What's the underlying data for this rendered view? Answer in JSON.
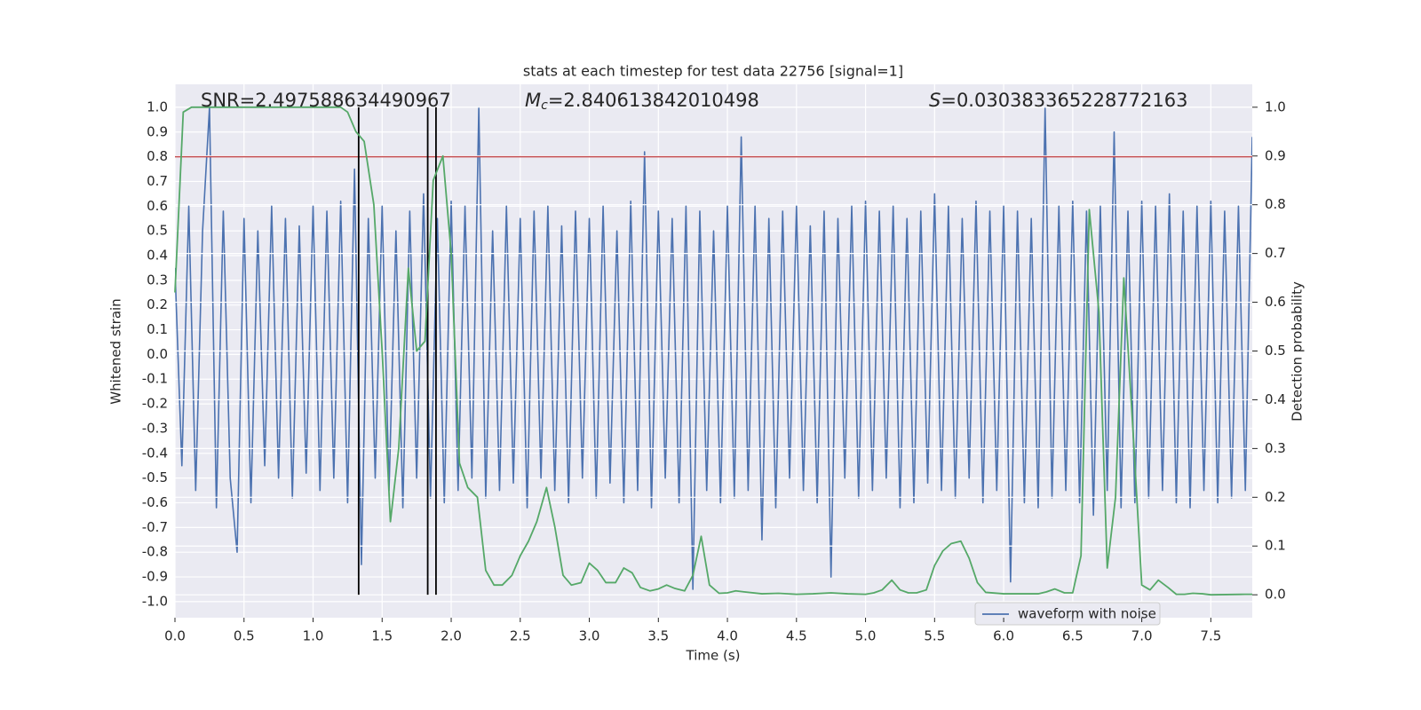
{
  "chart_data": {
    "type": "line",
    "title": "stats at each timestep for test data 22756 [signal=1]",
    "xlabel": "Time (s)",
    "ylabel": "Whitened strain",
    "y2label": "Detection probability",
    "annotations": [
      {
        "text": "SNR=2.497588634490967"
      },
      {
        "symbol": "M",
        "subscript": "c",
        "text": "=2.840613842010498"
      },
      {
        "symbol": "S",
        "text": "=0.030383365228772163"
      }
    ],
    "xlim": [
      0,
      7.8
    ],
    "ylim": [
      -1.065,
      1.093
    ],
    "y2lim": [
      -0.047,
      1.047
    ],
    "grid": true,
    "background": "#eaeaf2",
    "xticks": [
      {
        "value": 0,
        "label": "0.0"
      },
      {
        "value": 0.5,
        "label": "0.5"
      },
      {
        "value": 1,
        "label": "1.0"
      },
      {
        "value": 1.5,
        "label": "1.5"
      },
      {
        "value": 2,
        "label": "2.0"
      },
      {
        "value": 2.5,
        "label": "2.5"
      },
      {
        "value": 3,
        "label": "3.0"
      },
      {
        "value": 3.5,
        "label": "3.5"
      },
      {
        "value": 4,
        "label": "4.0"
      },
      {
        "value": 4.5,
        "label": "4.5"
      },
      {
        "value": 5,
        "label": "5.0"
      },
      {
        "value": 5.5,
        "label": "5.5"
      },
      {
        "value": 6,
        "label": "6.0"
      },
      {
        "value": 6.5,
        "label": "6.5"
      },
      {
        "value": 7,
        "label": "7.0"
      },
      {
        "value": 7.5,
        "label": "7.5"
      }
    ],
    "yticks": [
      {
        "value": 1,
        "label": "1.0"
      },
      {
        "value": 0.9,
        "label": "0.9"
      },
      {
        "value": 0.8,
        "label": "0.8"
      },
      {
        "value": 0.7,
        "label": "0.7"
      },
      {
        "value": 0.6,
        "label": "0.6"
      },
      {
        "value": 0.5,
        "label": "0.5"
      },
      {
        "value": 0.4,
        "label": "0.4"
      },
      {
        "value": 0.3,
        "label": "0.3"
      },
      {
        "value": 0.2,
        "label": "0.2"
      },
      {
        "value": 0.1,
        "label": "0.1"
      },
      {
        "value": 0,
        "label": "0.0"
      },
      {
        "value": -0.1,
        "label": "-0.1"
      },
      {
        "value": -0.2,
        "label": "-0.2"
      },
      {
        "value": -0.3,
        "label": "-0.3"
      },
      {
        "value": -0.4,
        "label": "-0.4"
      },
      {
        "value": -0.5,
        "label": "-0.5"
      },
      {
        "value": -0.6,
        "label": "-0.6"
      },
      {
        "value": -0.7,
        "label": "-0.7"
      },
      {
        "value": -0.8,
        "label": "-0.8"
      },
      {
        "value": -0.9,
        "label": "-0.9"
      },
      {
        "value": -1,
        "label": "-1.0"
      }
    ],
    "y2ticks": [
      {
        "value": 0,
        "label": "0.0"
      },
      {
        "value": 0.1,
        "label": "0.1"
      },
      {
        "value": 0.2,
        "label": "0.2"
      },
      {
        "value": 0.3,
        "label": "0.3"
      },
      {
        "value": 0.4,
        "label": "0.4"
      },
      {
        "value": 0.5,
        "label": "0.5"
      },
      {
        "value": 0.6,
        "label": "0.6"
      },
      {
        "value": 0.7,
        "label": "0.7"
      },
      {
        "value": 0.8,
        "label": "0.8"
      },
      {
        "value": 0.9,
        "label": "0.9"
      },
      {
        "value": 1,
        "label": "1.0"
      }
    ],
    "series": [
      {
        "name": "waveform with noise",
        "color": "#4c72b0",
        "axis": "y",
        "x": [
          0,
          0.05,
          0.1,
          0.15,
          0.2,
          0.25,
          0.3,
          0.35,
          0.4,
          0.45,
          0.5,
          0.55,
          0.6,
          0.65,
          0.7,
          0.75,
          0.8,
          0.85,
          0.9,
          0.95,
          1,
          1.05,
          1.1,
          1.15,
          1.2,
          1.25,
          1.3,
          1.35,
          1.4,
          1.45,
          1.5,
          1.55,
          1.6,
          1.65,
          1.7,
          1.75,
          1.8,
          1.85,
          1.9,
          1.95,
          2,
          2.05,
          2.1,
          2.15,
          2.2,
          2.25,
          2.3,
          2.35,
          2.4,
          2.45,
          2.5,
          2.55,
          2.6,
          2.65,
          2.7,
          2.75,
          2.8,
          2.85,
          2.9,
          2.95,
          3,
          3.05,
          3.1,
          3.15,
          3.2,
          3.25,
          3.3,
          3.35,
          3.4,
          3.45,
          3.5,
          3.55,
          3.6,
          3.65,
          3.7,
          3.75,
          3.8,
          3.85,
          3.9,
          3.95,
          4,
          4.05,
          4.1,
          4.15,
          4.2,
          4.25,
          4.3,
          4.35,
          4.4,
          4.45,
          4.5,
          4.55,
          4.6,
          4.65,
          4.7,
          4.75,
          4.8,
          4.85,
          4.9,
          4.95,
          5,
          5.05,
          5.1,
          5.15,
          5.2,
          5.25,
          5.3,
          5.35,
          5.4,
          5.45,
          5.5,
          5.55,
          5.6,
          5.65,
          5.7,
          5.75,
          5.8,
          5.85,
          5.9,
          5.95,
          6,
          6.05,
          6.1,
          6.15,
          6.2,
          6.25,
          6.3,
          6.35,
          6.4,
          6.45,
          6.5,
          6.55,
          6.6,
          6.65,
          6.7,
          6.75,
          6.8,
          6.85,
          6.9,
          6.95,
          7,
          7.05,
          7.1,
          7.15,
          7.2,
          7.25,
          7.3,
          7.35,
          7.4,
          7.45,
          7.5,
          7.55,
          7.6,
          7.65,
          7.7,
          7.75,
          7.8
        ],
        "values": [
          0.35,
          -0.45,
          0.6,
          -0.55,
          0.5,
          1.0,
          -0.62,
          0.58,
          -0.5,
          -0.8,
          0.55,
          -0.6,
          0.5,
          -0.45,
          0.6,
          -0.5,
          0.55,
          -0.58,
          0.52,
          -0.48,
          0.6,
          -0.55,
          0.58,
          -0.5,
          0.62,
          -0.6,
          0.75,
          -0.85,
          0.55,
          -0.5,
          0.6,
          -0.55,
          0.5,
          -0.62,
          0.58,
          -0.5,
          0.65,
          -0.58,
          0.55,
          -0.6,
          0.62,
          -0.55,
          0.6,
          -0.5,
          1.0,
          -0.58,
          0.5,
          -0.55,
          0.6,
          -0.52,
          0.55,
          -0.62,
          0.58,
          -0.5,
          0.6,
          -0.55,
          0.52,
          -0.6,
          0.58,
          -0.5,
          0.55,
          -0.58,
          0.6,
          -0.52,
          0.5,
          -0.6,
          0.62,
          -0.55,
          0.82,
          -0.62,
          0.58,
          -0.5,
          0.55,
          -0.6,
          0.6,
          -0.95,
          0.58,
          -0.55,
          0.5,
          -0.6,
          0.6,
          -0.58,
          0.88,
          -0.55,
          0.6,
          -0.75,
          0.55,
          -0.62,
          0.58,
          -0.5,
          0.6,
          -0.55,
          0.52,
          -0.6,
          0.58,
          -0.9,
          0.55,
          -0.5,
          0.6,
          -0.58,
          0.62,
          -0.55,
          0.58,
          -0.5,
          0.6,
          -0.62,
          0.55,
          -0.6,
          0.58,
          -0.52,
          0.65,
          -0.55,
          0.6,
          -0.58,
          0.55,
          -0.5,
          0.62,
          -0.6,
          0.58,
          -0.55,
          0.6,
          -0.92,
          0.58,
          -0.6,
          0.55,
          -0.62,
          1.0,
          -0.58,
          0.6,
          -0.55,
          0.62,
          -0.6,
          0.58,
          -0.65,
          0.6,
          -0.55,
          0.9,
          -0.62,
          0.58,
          -0.6,
          0.62,
          -0.58,
          0.6,
          -0.55,
          0.65,
          -0.6,
          0.58,
          -0.62,
          0.6,
          -0.55,
          0.62,
          -0.6,
          0.58,
          -0.58,
          0.6,
          -0.55,
          0.88
        ]
      },
      {
        "color": "#55a868",
        "axis": "y2",
        "x": [
          0,
          0.06,
          0.12,
          0.2,
          1.2,
          1.25,
          1.31,
          1.37,
          1.44,
          1.5,
          1.56,
          1.62,
          1.69,
          1.75,
          1.81,
          1.87,
          1.94,
          2.0,
          2.06,
          2.12,
          2.19,
          2.25,
          2.31,
          2.37,
          2.44,
          2.5,
          2.56,
          2.62,
          2.69,
          2.75,
          2.81,
          2.87,
          2.94,
          3.0,
          3.06,
          3.12,
          3.19,
          3.25,
          3.31,
          3.37,
          3.44,
          3.5,
          3.56,
          3.62,
          3.69,
          3.75,
          3.81,
          3.87,
          3.94,
          4.0,
          4.06,
          4.12,
          4.25,
          4.37,
          4.5,
          4.62,
          4.75,
          4.87,
          5.0,
          5.06,
          5.12,
          5.19,
          5.25,
          5.31,
          5.37,
          5.44,
          5.5,
          5.56,
          5.62,
          5.69,
          5.75,
          5.81,
          5.87,
          6.0,
          6.25,
          6.31,
          6.37,
          6.44,
          6.5,
          6.56,
          6.62,
          6.69,
          6.75,
          6.81,
          6.87,
          6.94,
          7.0,
          7.06,
          7.12,
          7.19,
          7.25,
          7.31,
          7.37,
          7.44,
          7.5,
          7.75,
          7.8
        ],
        "values": [
          0.62,
          0.99,
          1.0,
          1.0,
          1.0,
          0.99,
          0.95,
          0.93,
          0.8,
          0.5,
          0.15,
          0.3,
          0.67,
          0.5,
          0.52,
          0.85,
          0.9,
          0.7,
          0.27,
          0.22,
          0.2,
          0.05,
          0.02,
          0.02,
          0.04,
          0.08,
          0.11,
          0.15,
          0.22,
          0.14,
          0.04,
          0.02,
          0.025,
          0.065,
          0.05,
          0.025,
          0.025,
          0.055,
          0.045,
          0.015,
          0.008,
          0.012,
          0.02,
          0.013,
          0.008,
          0.04,
          0.12,
          0.02,
          0.003,
          0.004,
          0.008,
          0.006,
          0.002,
          0.003,
          0.001,
          0.002,
          0.004,
          0.002,
          0.001,
          0.004,
          0.01,
          0.03,
          0.01,
          0.004,
          0.004,
          0.01,
          0.06,
          0.09,
          0.105,
          0.11,
          0.075,
          0.025,
          0.005,
          0.002,
          0.002,
          0.006,
          0.012,
          0.004,
          0.004,
          0.08,
          0.79,
          0.58,
          0.055,
          0.2,
          0.65,
          0.32,
          0.02,
          0.01,
          0.03,
          0.015,
          0.001,
          0.001,
          0.003,
          0.002,
          0,
          0.001,
          0.001
        ]
      }
    ],
    "threshold": {
      "axis": "y",
      "value": 0.8,
      "color": "#c44e52"
    },
    "events": {
      "axis": "y2",
      "x": [
        1.33,
        1.83,
        1.89
      ],
      "range": [
        0,
        1
      ],
      "color": "#000000"
    }
  }
}
